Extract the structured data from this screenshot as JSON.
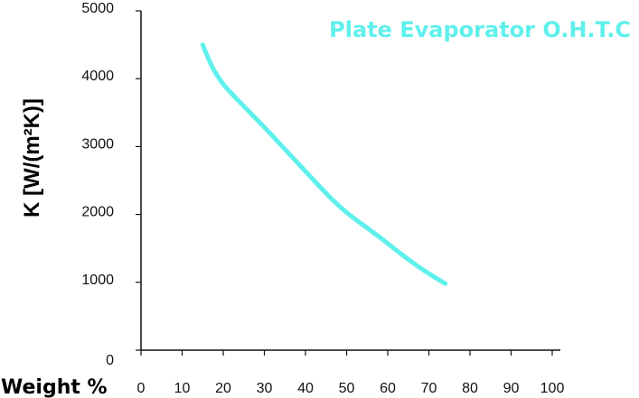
{
  "chart_data": {
    "type": "line",
    "title": "Plate Evaporator O.H.T.C",
    "xlabel": "Weight %",
    "ylabel": "K [W/(m²K)]",
    "xlim": [
      0,
      100
    ],
    "ylim": [
      0,
      5000
    ],
    "x_ticks": [
      0,
      10,
      20,
      30,
      40,
      50,
      60,
      70,
      80,
      90,
      100
    ],
    "y_ticks": [
      0,
      1000,
      2000,
      3000,
      4000,
      5000
    ],
    "grid": false,
    "line_color": "#5ff0ec",
    "series": [
      {
        "x": [
          15,
          16.5,
          18,
          20,
          23,
          27,
          31,
          35,
          39,
          43,
          47,
          51,
          55,
          59,
          63,
          67,
          71,
          74
        ],
        "values": [
          4500,
          4280,
          4100,
          3920,
          3720,
          3470,
          3220,
          2960,
          2700,
          2440,
          2190,
          1980,
          1800,
          1620,
          1430,
          1250,
          1090,
          980
        ]
      }
    ]
  }
}
